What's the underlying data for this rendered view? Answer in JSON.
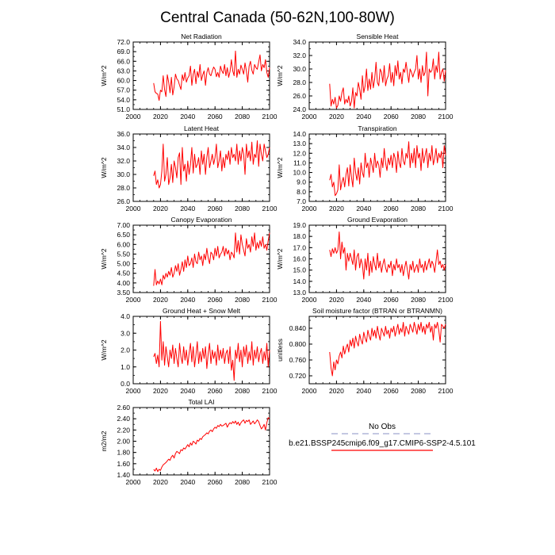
{
  "figure": {
    "title": "Central Canada (50-62N,100-80W)"
  },
  "legend": {
    "obs_label": "No Obs",
    "model_label": "b.e21.BSSP245cmip6.f09_g17.CMIP6-SSP2-4.5.101",
    "obs_color": "#a0a8d0",
    "model_color": "#ff0000"
  },
  "chart_data": [
    {
      "type": "line",
      "title": "Net Radiation",
      "ylabel": "W/m^2",
      "xlim": [
        2000,
        2100
      ],
      "xticks": [
        "2000",
        "2020",
        "2040",
        "2060",
        "2080",
        "2100"
      ],
      "ylim": [
        51.0,
        72.0
      ],
      "yticks": [
        "51.0",
        "54.0",
        "57.0",
        "60.0",
        "63.0",
        "66.0",
        "69.0",
        "72.0"
      ],
      "x_start": 2015,
      "series": [
        {
          "name": "b.e21.BSSP245cmip6.f09_g17.CMIP6-SSP2-4.5.101",
          "color": "#ff0000",
          "values": [
            59.2,
            56.5,
            56.0,
            55.8,
            53.8,
            57.0,
            56.5,
            61.5,
            57.2,
            55.0,
            61.8,
            59.5,
            56.2,
            61.0,
            55.5,
            58.0,
            62.0,
            60.5,
            60.0,
            58.5,
            57.2,
            61.8,
            60.0,
            62.5,
            59.5,
            60.8,
            61.5,
            64.5,
            58.5,
            62.0,
            63.5,
            59.0,
            62.8,
            61.0,
            65.0,
            60.0,
            61.8,
            63.0,
            58.5,
            62.5,
            64.0,
            62.0,
            61.5,
            63.0,
            64.2,
            63.5,
            61.2,
            62.5,
            61.0,
            64.5,
            63.0,
            62.2,
            65.0,
            61.5,
            64.0,
            61.0,
            62.8,
            66.5,
            63.0,
            61.5,
            69.2,
            61.0,
            63.5,
            62.0,
            64.8,
            63.5,
            62.0,
            65.5,
            63.0,
            59.5,
            64.5,
            66.0,
            63.2,
            62.0,
            65.0,
            64.0,
            63.5,
            65.8,
            68.0,
            63.0,
            65.0,
            64.0,
            66.5,
            62.5,
            61.0,
            64.0
          ]
        }
      ]
    },
    {
      "type": "line",
      "title": "Sensible Heat",
      "ylabel": "W/m^2",
      "xlim": [
        2000,
        2100
      ],
      "xticks": [
        "2000",
        "2020",
        "2040",
        "2060",
        "2080",
        "2100"
      ],
      "ylim": [
        24.0,
        34.0
      ],
      "yticks": [
        "24.0",
        "26.0",
        "28.0",
        "30.0",
        "32.0",
        "34.0"
      ],
      "x_start": 2015,
      "series": [
        {
          "name": "b.e21.BSSP245cmip6.f09_g17.CMIP6-SSP2-4.5.101",
          "color": "#ff0000",
          "values": [
            27.8,
            24.5,
            25.5,
            24.8,
            25.8,
            24.2,
            24.6,
            26.0,
            25.2,
            26.5,
            27.2,
            24.8,
            25.5,
            25.0,
            26.0,
            24.5,
            25.2,
            27.2,
            24.2,
            26.5,
            26.0,
            28.0,
            27.0,
            25.5,
            29.0,
            26.5,
            27.5,
            30.0,
            26.8,
            28.5,
            27.0,
            29.5,
            27.2,
            28.5,
            31.0,
            28.0,
            27.5,
            30.0,
            29.5,
            28.0,
            30.5,
            27.5,
            28.5,
            29.0,
            30.8,
            28.0,
            29.5,
            27.5,
            30.5,
            29.0,
            31.2,
            28.5,
            29.5,
            27.8,
            30.0,
            29.5,
            31.0,
            29.5,
            28.0,
            30.0,
            29.5,
            28.8,
            29.5,
            30.0,
            32.0,
            28.5,
            30.0,
            28.0,
            30.5,
            29.0,
            29.5,
            32.5,
            26.0,
            30.0,
            29.5,
            29.8,
            31.5,
            28.5,
            30.5,
            29.5,
            32.5,
            28.5,
            29.5,
            30.0,
            28.2,
            29.8
          ]
        }
      ]
    },
    {
      "type": "line",
      "title": "Latent Heat",
      "ylabel": "W/m^2",
      "xlim": [
        2000,
        2100
      ],
      "xticks": [
        "2000",
        "2020",
        "2040",
        "2060",
        "2080",
        "2100"
      ],
      "ylim": [
        26.0,
        36.0
      ],
      "yticks": [
        "26.0",
        "28.0",
        "30.0",
        "32.0",
        "34.0",
        "36.0"
      ],
      "x_start": 2015,
      "series": [
        {
          "name": "b.e21.BSSP245cmip6.f09_g17.CMIP6-SSP2-4.5.101",
          "color": "#ff0000",
          "values": [
            29.8,
            30.5,
            28.5,
            29.2,
            28.0,
            28.5,
            30.5,
            34.5,
            29.0,
            30.0,
            32.5,
            28.5,
            29.5,
            31.5,
            28.8,
            32.0,
            31.0,
            29.5,
            32.5,
            33.2,
            28.5,
            34.0,
            30.5,
            31.5,
            29.0,
            32.0,
            30.0,
            31.5,
            34.0,
            30.2,
            33.0,
            31.0,
            31.5,
            32.5,
            30.0,
            33.5,
            31.5,
            33.0,
            30.0,
            32.5,
            34.0,
            31.0,
            32.0,
            33.0,
            31.5,
            32.5,
            34.5,
            31.0,
            32.0,
            33.5,
            30.5,
            32.5,
            31.0,
            33.0,
            32.2,
            33.5,
            31.5,
            34.0,
            32.5,
            33.0,
            32.0,
            34.5,
            31.5,
            33.5,
            32.0,
            34.0,
            33.0,
            30.0,
            34.5,
            32.5,
            33.5,
            32.0,
            34.8,
            31.5,
            33.0,
            32.5,
            35.0,
            31.2,
            34.5,
            33.0,
            32.0,
            34.5,
            33.5,
            32.5,
            33.0,
            34.0
          ]
        }
      ]
    },
    {
      "type": "line",
      "title": "Transpiration",
      "ylabel": "W/m^2",
      "xlim": [
        2000,
        2100
      ],
      "xticks": [
        "2000",
        "2020",
        "2040",
        "2060",
        "2080",
        "2100"
      ],
      "ylim": [
        7.0,
        14.0
      ],
      "yticks": [
        "7.0",
        "8.0",
        "9.0",
        "10.0",
        "11.0",
        "12.0",
        "13.0",
        "14.0"
      ],
      "x_start": 2015,
      "series": [
        {
          "name": "b.e21.BSSP245cmip6.f09_g17.CMIP6-SSP2-4.5.101",
          "color": "#ff0000",
          "values": [
            9.2,
            9.8,
            8.5,
            9.0,
            7.6,
            7.8,
            8.2,
            10.8,
            8.2,
            9.0,
            9.5,
            8.5,
            9.8,
            10.5,
            8.6,
            10.8,
            9.5,
            8.5,
            11.5,
            10.0,
            9.2,
            10.5,
            8.8,
            11.0,
            10.0,
            9.5,
            12.0,
            10.5,
            11.0,
            9.5,
            11.5,
            10.8,
            10.0,
            12.0,
            10.5,
            11.2,
            10.8,
            9.5,
            11.5,
            10.5,
            12.5,
            11.0,
            10.2,
            11.5,
            10.8,
            11.8,
            10.5,
            12.0,
            11.5,
            10.0,
            12.2,
            11.0,
            10.5,
            12.5,
            11.2,
            10.8,
            12.0,
            11.5,
            13.2,
            10.5,
            12.0,
            11.0,
            12.5,
            10.5,
            12.8,
            11.5,
            12.0,
            10.2,
            12.5,
            11.0,
            11.8,
            12.5,
            10.5,
            12.0,
            11.2,
            12.8,
            10.8,
            11.5,
            12.5,
            11.0,
            12.0,
            11.5,
            12.2,
            10.5,
            12.8,
            11.8
          ]
        }
      ]
    },
    {
      "type": "line",
      "title": "Canopy Evaporation",
      "ylabel": "W/m^2",
      "xlim": [
        2000,
        2100
      ],
      "xticks": [
        "2000",
        "2020",
        "2040",
        "2060",
        "2080",
        "2100"
      ],
      "ylim": [
        3.5,
        7.0
      ],
      "yticks": [
        "3.50",
        "4.00",
        "4.50",
        "5.00",
        "5.50",
        "6.00",
        "6.50",
        "7.00"
      ],
      "x_start": 2015,
      "series": [
        {
          "name": "b.e21.BSSP245cmip6.f09_g17.CMIP6-SSP2-4.5.101",
          "color": "#ff0000",
          "values": [
            3.85,
            4.7,
            3.9,
            4.1,
            3.95,
            4.2,
            3.9,
            4.4,
            4.2,
            4.5,
            4.3,
            4.6,
            4.4,
            4.8,
            4.3,
            4.5,
            4.9,
            4.6,
            5.0,
            4.4,
            4.7,
            5.1,
            4.6,
            5.2,
            4.8,
            5.4,
            4.9,
            5.0,
            5.3,
            4.8,
            5.5,
            5.1,
            5.0,
            5.6,
            5.2,
            5.4,
            4.9,
            5.5,
            5.2,
            5.8,
            5.3,
            5.0,
            5.6,
            5.5,
            5.2,
            5.8,
            5.4,
            5.9,
            5.3,
            5.5,
            5.6,
            5.9,
            5.4,
            5.8,
            5.5,
            5.7,
            5.2,
            5.6,
            5.5,
            5.3,
            6.6,
            5.6,
            6.2,
            5.5,
            6.5,
            6.0,
            5.7,
            5.4,
            6.3,
            5.8,
            6.0,
            5.6,
            6.4,
            5.9,
            6.6,
            5.7,
            6.1,
            5.8,
            6.2,
            5.9,
            6.4,
            5.8,
            6.0,
            5.7,
            6.2,
            6.6
          ]
        }
      ]
    },
    {
      "type": "line",
      "title": "Ground Evaporation",
      "ylabel": "W/m^2",
      "xlim": [
        2000,
        2100
      ],
      "xticks": [
        "2000",
        "2020",
        "2040",
        "2060",
        "2080",
        "2100"
      ],
      "ylim": [
        13.0,
        19.0
      ],
      "yticks": [
        "13.0",
        "14.0",
        "15.0",
        "16.0",
        "17.0",
        "18.0",
        "19.0"
      ],
      "x_start": 2015,
      "series": [
        {
          "name": "b.e21.BSSP245cmip6.f09_g17.CMIP6-SSP2-4.5.101",
          "color": "#ff0000",
          "values": [
            16.8,
            16.2,
            16.9,
            16.5,
            17.0,
            16.5,
            16.8,
            18.4,
            16.0,
            17.5,
            16.5,
            17.0,
            15.0,
            16.5,
            15.8,
            16.5,
            16.0,
            15.5,
            16.8,
            15.0,
            16.2,
            16.5,
            15.2,
            16.0,
            15.5,
            14.2,
            16.0,
            15.0,
            16.5,
            14.5,
            15.8,
            14.8,
            16.2,
            15.5,
            15.0,
            16.5,
            15.2,
            15.8,
            14.8,
            15.5,
            16.0,
            15.2,
            14.8,
            15.5,
            15.2,
            15.8,
            14.5,
            15.5,
            15.0,
            16.0,
            15.2,
            15.5,
            14.8,
            15.5,
            14.5,
            15.2,
            15.8,
            15.0,
            14.2,
            15.5,
            15.0,
            15.8,
            14.8,
            15.2,
            15.5,
            14.8,
            16.0,
            15.2,
            15.5,
            14.8,
            15.8,
            15.0,
            15.5,
            16.0,
            15.2,
            15.8,
            15.5,
            14.8,
            15.8,
            16.8,
            15.5,
            15.8,
            15.2,
            15.5,
            15.0,
            15.5
          ]
        }
      ]
    },
    {
      "type": "line",
      "title": "Ground Heat + Snow Melt",
      "ylabel": "W/m^2",
      "xlim": [
        2000,
        2100
      ],
      "xticks": [
        "2000",
        "2020",
        "2040",
        "2060",
        "2080",
        "2100"
      ],
      "ylim": [
        0.0,
        4.0
      ],
      "yticks": [
        "0.0",
        "1.0",
        "2.0",
        "3.0",
        "4.0"
      ],
      "x_start": 2015,
      "series": [
        {
          "name": "b.e21.BSSP245cmip6.f09_g17.CMIP6-SSP2-4.5.101",
          "color": "#ff0000",
          "values": [
            1.6,
            1.8,
            1.2,
            1.7,
            1.0,
            3.7,
            1.4,
            2.5,
            1.1,
            2.2,
            1.6,
            1.0,
            2.0,
            1.5,
            2.3,
            1.2,
            2.1,
            1.5,
            1.0,
            2.4,
            1.6,
            1.2,
            2.2,
            1.4,
            2.0,
            1.1,
            1.8,
            2.4,
            1.3,
            2.2,
            1.0,
            1.7,
            2.5,
            1.2,
            1.9,
            1.3,
            2.1,
            1.5,
            2.2,
            0.9,
            1.8,
            2.4,
            1.2,
            2.0,
            1.5,
            1.9,
            1.1,
            2.3,
            1.4,
            2.0,
            1.5,
            2.1,
            1.2,
            1.8,
            2.0,
            1.2,
            2.2,
            0.8,
            1.4,
            0.2,
            2.0,
            1.5,
            2.4,
            1.3,
            2.0,
            1.0,
            2.2,
            1.6,
            2.3,
            1.2,
            1.9,
            1.4,
            2.5,
            1.1,
            2.0,
            1.5,
            2.2,
            1.3,
            1.8,
            2.1,
            1.2,
            1.9,
            1.4,
            2.4,
            1.0,
            2.0
          ]
        }
      ]
    },
    {
      "type": "line",
      "title": "Soil moisture factor (BTRAN or BTRANMN)",
      "ylabel": "unitless",
      "xlim": [
        2000,
        2100
      ],
      "xticks": [
        "2000",
        "2020",
        "2040",
        "2060",
        "2080",
        "2100"
      ],
      "ylim": [
        0.7,
        0.87
      ],
      "yticks": [
        "0.720",
        "0.760",
        "0.800",
        "0.840"
      ],
      "ytick_values": [
        0.72,
        0.76,
        0.8,
        0.84
      ],
      "x_start": 2015,
      "series": [
        {
          "name": "b.e21.BSSP245cmip6.f09_g17.CMIP6-SSP2-4.5.101",
          "color": "#ff0000",
          "values": [
            0.78,
            0.74,
            0.72,
            0.755,
            0.735,
            0.76,
            0.75,
            0.77,
            0.78,
            0.765,
            0.795,
            0.775,
            0.79,
            0.8,
            0.78,
            0.81,
            0.795,
            0.815,
            0.79,
            0.82,
            0.805,
            0.795,
            0.825,
            0.81,
            0.8,
            0.83,
            0.815,
            0.805,
            0.835,
            0.82,
            0.81,
            0.84,
            0.82,
            0.835,
            0.815,
            0.845,
            0.825,
            0.81,
            0.84,
            0.83,
            0.82,
            0.845,
            0.825,
            0.835,
            0.815,
            0.84,
            0.83,
            0.845,
            0.82,
            0.835,
            0.85,
            0.825,
            0.84,
            0.83,
            0.855,
            0.82,
            0.845,
            0.835,
            0.825,
            0.85,
            0.84,
            0.83,
            0.855,
            0.84,
            0.825,
            0.85,
            0.835,
            0.855,
            0.83,
            0.845,
            0.825,
            0.85,
            0.84,
            0.855,
            0.83,
            0.845,
            0.81,
            0.85,
            0.84,
            0.855,
            0.835,
            0.805,
            0.85,
            0.845,
            0.84,
            0.85
          ]
        }
      ]
    },
    {
      "type": "line",
      "title": "Total LAI",
      "ylabel": "m2/m2",
      "xlim": [
        2000,
        2100
      ],
      "xticks": [
        "2000",
        "2020",
        "2040",
        "2060",
        "2080",
        "2100"
      ],
      "ylim": [
        1.4,
        2.6
      ],
      "yticks": [
        "1.40",
        "1.60",
        "1.80",
        "2.00",
        "2.20",
        "2.40",
        "2.60"
      ],
      "x_start": 2015,
      "series": [
        {
          "name": "b.e21.BSSP245cmip6.f09_g17.CMIP6-SSP2-4.5.101",
          "color": "#ff0000",
          "values": [
            1.5,
            1.47,
            1.52,
            1.46,
            1.5,
            1.48,
            1.54,
            1.58,
            1.6,
            1.62,
            1.65,
            1.68,
            1.66,
            1.72,
            1.75,
            1.7,
            1.78,
            1.82,
            1.8,
            1.78,
            1.85,
            1.83,
            1.88,
            1.86,
            1.9,
            1.94,
            1.9,
            1.97,
            1.93,
            2.0,
            1.98,
            1.95,
            2.02,
            2.0,
            2.05,
            2.03,
            2.08,
            2.1,
            2.12,
            2.15,
            2.13,
            2.18,
            2.2,
            2.17,
            2.22,
            2.25,
            2.23,
            2.28,
            2.26,
            2.3,
            2.27,
            2.28,
            2.3,
            2.32,
            2.25,
            2.3,
            2.33,
            2.31,
            2.35,
            2.32,
            2.36,
            2.3,
            2.34,
            2.28,
            2.33,
            2.36,
            2.38,
            2.32,
            2.37,
            2.35,
            2.38,
            2.3,
            2.33,
            2.36,
            2.31,
            2.34,
            2.38,
            2.35,
            2.28,
            2.22,
            2.25,
            2.3,
            2.2,
            2.33,
            2.42,
            2.4
          ]
        }
      ]
    }
  ]
}
